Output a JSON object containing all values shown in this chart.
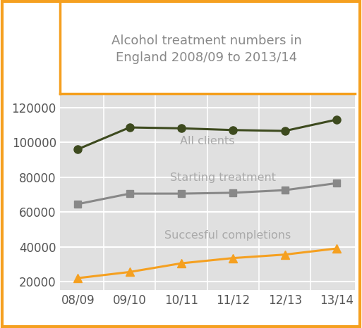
{
  "title": "Alcohol treatment numbers in\nEngland 2008/09 to 2013/14",
  "x_labels": [
    "08/09",
    "09/10",
    "10/11",
    "11/12",
    "12/13",
    "13/14"
  ],
  "all_clients": [
    96000,
    108500,
    108000,
    107000,
    106500,
    113000
  ],
  "starting_treatment": [
    64500,
    70500,
    70500,
    71000,
    72500,
    76500
  ],
  "successful_completions": [
    22000,
    25500,
    30500,
    33500,
    35500,
    39000
  ],
  "line_color_all": "#3d4a1e",
  "line_color_starting": "#888888",
  "line_color_completions": "#f5a020",
  "bg_plot": "#e0e0e0",
  "bg_fig": "#ffffff",
  "border_color": "#f5a020",
  "grid_color": "#ffffff",
  "text_color_labels": "#aaaaaa",
  "text_color_title": "#888888",
  "text_color_ticks": "#555555",
  "ylim": [
    15000,
    128000
  ],
  "yticks": [
    20000,
    40000,
    60000,
    80000,
    100000,
    120000
  ],
  "label_all": "All clients",
  "label_starting": "Starting treatment",
  "label_completions": "Succesful completions",
  "title_fontsize": 13,
  "label_fontsize": 11.5,
  "tick_fontsize": 12
}
